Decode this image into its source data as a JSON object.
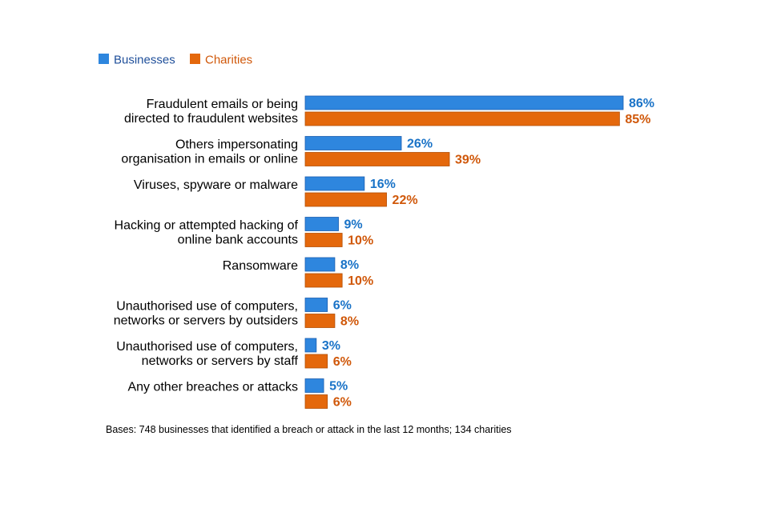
{
  "chart_data": {
    "type": "bar",
    "orientation": "horizontal",
    "title": "",
    "xlabel": "",
    "ylabel": "",
    "xlim": [
      0,
      100
    ],
    "grid": false,
    "legend": "top-left",
    "categories": [
      [
        "Fraudulent emails or being",
        "directed to fraudulent websites"
      ],
      [
        "Others impersonating",
        "organisation in emails or online"
      ],
      [
        "Viruses, spyware or malware"
      ],
      [
        "Hacking or attempted hacking of",
        "online bank accounts"
      ],
      [
        "Ransomware"
      ],
      [
        "Unauthorised use of computers,",
        "networks or servers by outsiders"
      ],
      [
        "Unauthorised use of computers,",
        "networks or servers by staff"
      ],
      [
        "Any other breaches or attacks"
      ]
    ],
    "series": [
      {
        "name": "Businesses",
        "color": "#2e86de",
        "label_color": "#1a73c7",
        "values": [
          86,
          26,
          16,
          9,
          8,
          6,
          3,
          5
        ]
      },
      {
        "name": "Charities",
        "color": "#e4680c",
        "label_color": "#d0580a",
        "values": [
          85,
          39,
          22,
          10,
          10,
          8,
          6,
          6
        ]
      }
    ],
    "value_suffix": "%"
  },
  "footnote": "Bases: 748 businesses that identified a breach or attack in the last 12 months; 134 charities"
}
